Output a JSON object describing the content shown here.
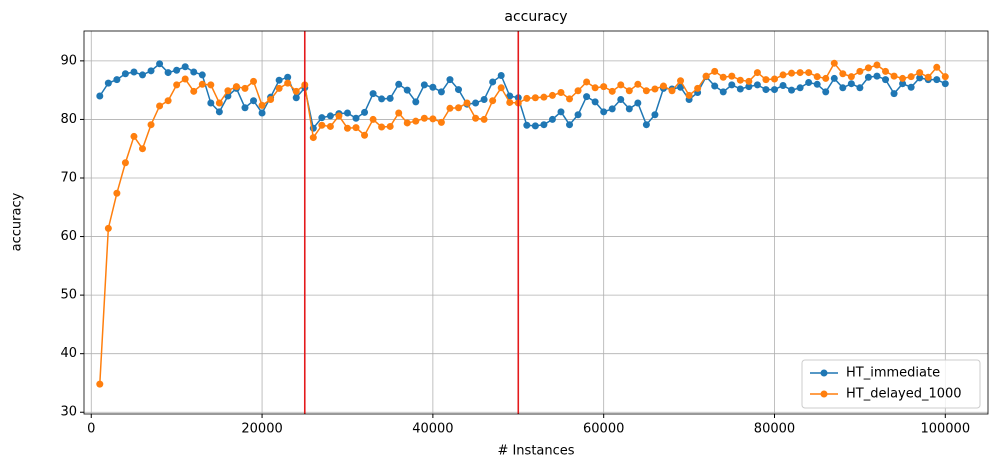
{
  "chart_data": {
    "type": "line",
    "title": "accuracy",
    "x_label": "# Instances",
    "y_label": "accuracy",
    "x": [
      1000,
      2000,
      3000,
      4000,
      5000,
      6000,
      7000,
      8000,
      9000,
      10000,
      11000,
      12000,
      13000,
      14000,
      15000,
      16000,
      17000,
      18000,
      19000,
      20000,
      21000,
      22000,
      23000,
      24000,
      25000,
      26000,
      27000,
      28000,
      29000,
      30000,
      31000,
      32000,
      33000,
      34000,
      35000,
      36000,
      37000,
      38000,
      39000,
      40000,
      41000,
      42000,
      43000,
      44000,
      45000,
      46000,
      47000,
      48000,
      49000,
      50000,
      51000,
      52000,
      53000,
      54000,
      55000,
      56000,
      57000,
      58000,
      59000,
      60000,
      61000,
      62000,
      63000,
      64000,
      65000,
      66000,
      67000,
      68000,
      69000,
      70000,
      71000,
      72000,
      73000,
      74000,
      75000,
      76000,
      77000,
      78000,
      79000,
      80000,
      81000,
      82000,
      83000,
      84000,
      85000,
      86000,
      87000,
      88000,
      89000,
      90000,
      91000,
      92000,
      93000,
      94000,
      95000,
      96000,
      97000,
      98000,
      99000,
      100000
    ],
    "series": [
      {
        "name": "HT_immediate",
        "color": "#1f77b4",
        "values": [
          84,
          86.2,
          86.8,
          87.8,
          88.1,
          87.6,
          88.3,
          89.5,
          88,
          88.4,
          89,
          88.1,
          87.6,
          82.8,
          81.3,
          84,
          85.3,
          82,
          83.2,
          81.1,
          83.8,
          86.7,
          87.2,
          83.7,
          85.4,
          78.5,
          80.3,
          80.6,
          81,
          81.1,
          80.2,
          81.2,
          84.4,
          83.5,
          83.6,
          86,
          85,
          83,
          85.9,
          85.5,
          84.7,
          86.8,
          85.1,
          82.6,
          82.8,
          83.4,
          86.4,
          87.5,
          84,
          83.7,
          79,
          78.9,
          79.1,
          80,
          81.3,
          79.1,
          80.8,
          83.9,
          83,
          81.3,
          81.8,
          83.4,
          81.8,
          82.8,
          79.1,
          80.8,
          85.3,
          85.2,
          85.5,
          83.4,
          84.6,
          87.3,
          85.7,
          84.7,
          85.9,
          85.2,
          85.6,
          85.9,
          85.1,
          85.1,
          85.8,
          85,
          85.4,
          86.3,
          86,
          84.7,
          87,
          85.4,
          86.1,
          85.4,
          87.2,
          87.4,
          86.8,
          84.4,
          86.1,
          85.5,
          87.1,
          86.8,
          86.8,
          86.1
        ]
      },
      {
        "name": "HT_delayed_1000",
        "color": "#ff7f0e",
        "values": [
          34.8,
          61.4,
          67.4,
          72.6,
          77.1,
          75,
          79.1,
          82.3,
          83.2,
          85.9,
          86.9,
          84.8,
          86,
          85.9,
          82.8,
          84.9,
          85.6,
          85.3,
          86.5,
          82.4,
          83.4,
          85.3,
          86.2,
          84.8,
          85.9,
          76.9,
          79,
          78.8,
          80.6,
          78.5,
          78.6,
          77.3,
          80,
          78.7,
          78.8,
          81.1,
          79.4,
          79.7,
          80.2,
          80.1,
          79.5,
          81.9,
          82,
          82.8,
          80.2,
          80,
          83.2,
          85.4,
          82.9,
          82.8,
          83.6,
          83.7,
          83.8,
          84.1,
          84.6,
          83.5,
          84.9,
          86.4,
          85.4,
          85.6,
          84.8,
          85.9,
          84.9,
          86,
          84.9,
          85.2,
          85.7,
          84.9,
          86.6,
          84.1,
          85.3,
          87.4,
          88.2,
          87.2,
          87.4,
          86.7,
          86.5,
          88,
          86.8,
          86.9,
          87.6,
          87.9,
          88,
          88,
          87.3,
          87,
          89.6,
          87.8,
          87.3,
          88.2,
          88.8,
          89.3,
          88.2,
          87.4,
          87,
          87.3,
          88,
          87.2,
          88.9,
          87.3
        ]
      }
    ],
    "vlines": [
      25000,
      50000
    ],
    "vline_color": "#e41a1c",
    "xlim": [
      -850,
      105000
    ],
    "ylim": [
      29.7,
      95.1
    ],
    "xticks": [
      0,
      20000,
      40000,
      60000,
      80000,
      100000
    ],
    "yticks": [
      30,
      40,
      50,
      60,
      70,
      80,
      90
    ],
    "grid": true,
    "legend": "lower right"
  }
}
